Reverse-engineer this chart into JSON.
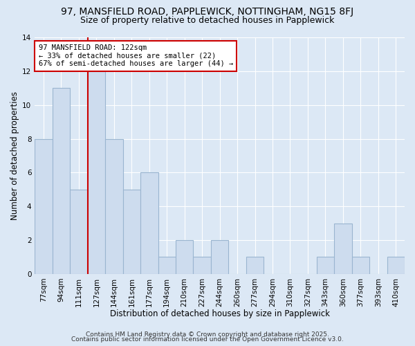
{
  "title": "97, MANSFIELD ROAD, PAPPLEWICK, NOTTINGHAM, NG15 8FJ",
  "subtitle": "Size of property relative to detached houses in Papplewick",
  "xlabel": "Distribution of detached houses by size in Papplewick",
  "ylabel": "Number of detached properties",
  "categories": [
    "77sqm",
    "94sqm",
    "111sqm",
    "127sqm",
    "144sqm",
    "161sqm",
    "177sqm",
    "194sqm",
    "210sqm",
    "227sqm",
    "244sqm",
    "260sqm",
    "277sqm",
    "294sqm",
    "310sqm",
    "327sqm",
    "343sqm",
    "360sqm",
    "377sqm",
    "393sqm",
    "410sqm"
  ],
  "values": [
    8,
    11,
    5,
    12,
    8,
    5,
    6,
    1,
    2,
    1,
    2,
    0,
    1,
    0,
    0,
    0,
    1,
    3,
    1,
    0,
    1
  ],
  "bar_color": "#cddcee",
  "bar_edge_color": "#9ab5d0",
  "vline_x_index": 3,
  "vline_color": "#cc0000",
  "annotation_line1": "97 MANSFIELD ROAD: 122sqm",
  "annotation_line2": "← 33% of detached houses are smaller (22)",
  "annotation_line3": "67% of semi-detached houses are larger (44) →",
  "ylim": [
    0,
    14
  ],
  "yticks": [
    0,
    2,
    4,
    6,
    8,
    10,
    12,
    14
  ],
  "bg_color": "#dce8f5",
  "plot_bg_color": "#dce8f5",
  "footer_line1": "Contains HM Land Registry data © Crown copyright and database right 2025.",
  "footer_line2": "Contains public sector information licensed under the Open Government Licence v3.0.",
  "title_fontsize": 10,
  "subtitle_fontsize": 9,
  "axis_label_fontsize": 8.5,
  "tick_fontsize": 7.5,
  "annotation_fontsize": 7.5,
  "footer_fontsize": 6.5
}
